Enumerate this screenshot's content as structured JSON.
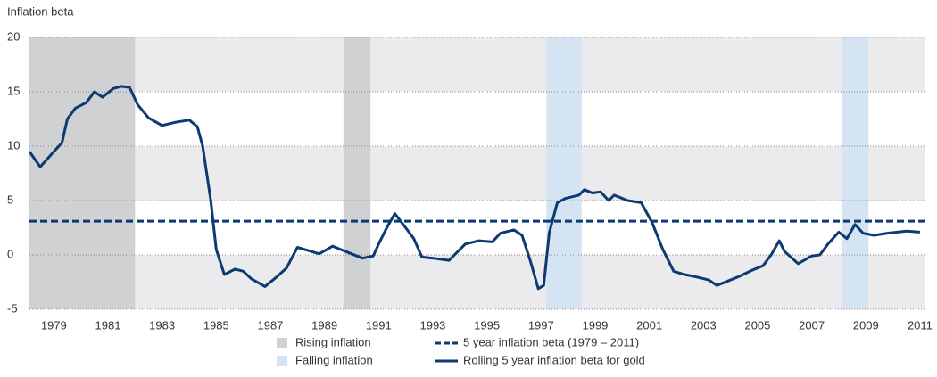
{
  "chart_data": {
    "type": "line",
    "y_label": "Inflation beta",
    "xlim": [
      1978.1,
      2011.2
    ],
    "xticks": [
      1979,
      1981,
      1983,
      1985,
      1987,
      1989,
      1991,
      1993,
      1995,
      1997,
      1999,
      2001,
      2003,
      2005,
      2007,
      2009,
      2011
    ],
    "ylim": [
      -5,
      20
    ],
    "yticks": [
      -5,
      0,
      5,
      10,
      15,
      20
    ],
    "grid": true,
    "regions": [
      {
        "name": "Rising inflation",
        "color": "#d0d1d3",
        "spans": [
          [
            1978.1,
            1982.0
          ],
          [
            1989.7,
            1990.7
          ]
        ]
      },
      {
        "name": "Falling inflation",
        "color": "#d5e4f3",
        "spans": [
          [
            1997.2,
            1998.5
          ],
          [
            2008.1,
            2009.1
          ]
        ]
      }
    ],
    "reference": {
      "name": "5 year inflation beta (1979 – 2011)",
      "value": 3.1,
      "color": "#0d3a73"
    },
    "series": [
      {
        "name": "Rolling 5 year inflation beta for gold",
        "color": "#0d3a73",
        "x": [
          1978.1,
          1978.5,
          1979.0,
          1979.3,
          1979.5,
          1979.8,
          1980.2,
          1980.5,
          1980.8,
          1981.2,
          1981.5,
          1981.8,
          1982.1,
          1982.5,
          1983.0,
          1983.5,
          1984.0,
          1984.3,
          1984.5,
          1984.8,
          1985.0,
          1985.3,
          1985.7,
          1986.0,
          1986.3,
          1986.8,
          1987.2,
          1987.6,
          1988.0,
          1988.4,
          1988.8,
          1989.3,
          1989.6,
          1990.0,
          1990.4,
          1990.8,
          1991.0,
          1991.3,
          1991.6,
          1992.0,
          1992.3,
          1992.6,
          1993.0,
          1993.6,
          1994.2,
          1994.7,
          1995.2,
          1995.5,
          1996.0,
          1996.3,
          1996.6,
          1996.9,
          1997.1,
          1997.3,
          1997.6,
          1997.9,
          1998.4,
          1998.6,
          1998.9,
          1999.2,
          1999.5,
          1999.7,
          2000.2,
          2000.7,
          2001.1,
          2001.5,
          2001.9,
          2002.3,
          2002.7,
          2003.2,
          2003.5,
          2003.9,
          2004.3,
          2004.8,
          2005.2,
          2005.5,
          2005.8,
          2006.0,
          2006.5,
          2007.0,
          2007.3,
          2007.6,
          2008.0,
          2008.3,
          2008.6,
          2008.9,
          2009.3,
          2009.8,
          2010.5,
          2011.0
        ],
        "values": [
          9.5,
          8.1,
          9.5,
          10.3,
          12.5,
          13.5,
          14.0,
          15.0,
          14.5,
          15.3,
          15.5,
          15.4,
          13.8,
          12.6,
          11.9,
          12.2,
          12.4,
          11.8,
          10.0,
          5.0,
          0.5,
          -1.8,
          -1.3,
          -1.5,
          -2.2,
          -2.9,
          -2.1,
          -1.2,
          0.7,
          0.4,
          0.1,
          0.8,
          0.5,
          0.1,
          -0.3,
          -0.1,
          1.0,
          2.5,
          3.8,
          2.5,
          1.5,
          -0.2,
          -0.3,
          -0.5,
          1.0,
          1.3,
          1.2,
          2.0,
          2.3,
          1.8,
          -0.5,
          -3.1,
          -2.8,
          2.0,
          4.8,
          5.2,
          5.5,
          6.0,
          5.7,
          5.8,
          5.0,
          5.5,
          5.0,
          4.8,
          3.0,
          0.5,
          -1.5,
          -1.8,
          -2.0,
          -2.3,
          -2.8,
          -2.4,
          -2.0,
          -1.4,
          -1.0,
          0.0,
          1.3,
          0.3,
          -0.8,
          -0.1,
          0.0,
          1.0,
          2.1,
          1.5,
          2.8,
          2.0,
          1.8,
          2.0,
          2.2,
          2.1
        ]
      }
    ]
  }
}
